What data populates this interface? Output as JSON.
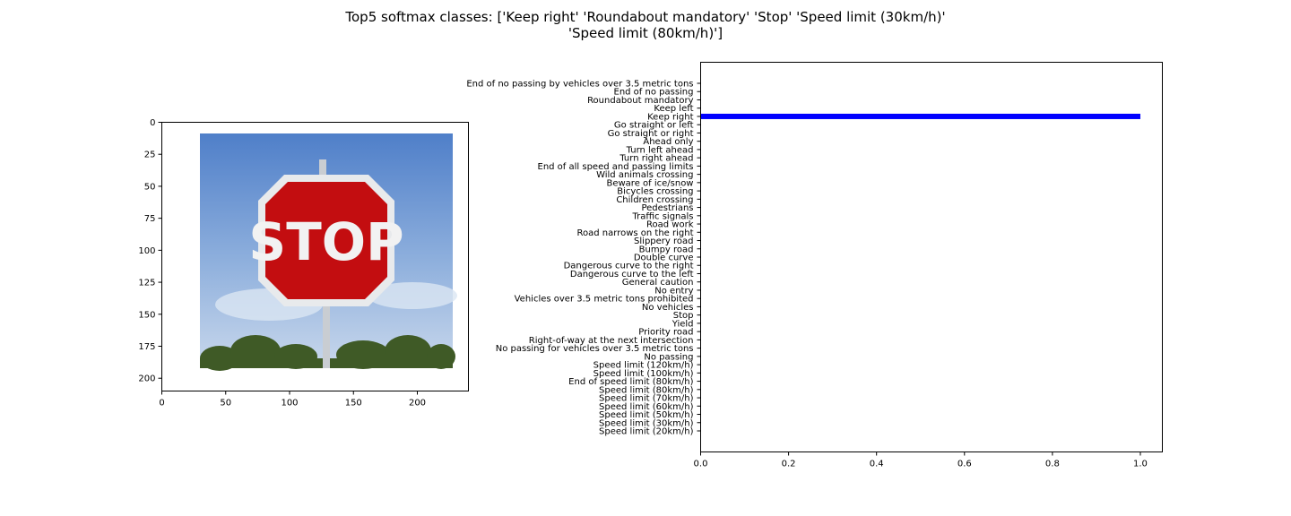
{
  "figure": {
    "title_line1": "Top5 softmax classes: ['Keep right' 'Roundabout mandatory' 'Stop' 'Speed limit (30km/h)'",
    "title_line2": "'Speed limit (80km/h)']"
  },
  "image_panel": {
    "sign_text": "STOP",
    "x_ticks": [
      0,
      50,
      100,
      150,
      200
    ],
    "y_ticks": [
      0,
      25,
      50,
      75,
      100,
      125,
      150,
      175,
      200
    ],
    "xlim": [
      0,
      240
    ],
    "ylim": [
      0,
      210
    ]
  },
  "chart_data": {
    "type": "bar",
    "orientation": "horizontal",
    "title": "",
    "xlabel": "",
    "ylabel": "",
    "xlim": [
      0,
      1.05
    ],
    "x_ticks": [
      0.0,
      0.2,
      0.4,
      0.6,
      0.8,
      1.0
    ],
    "x_tick_labels": [
      "0.0",
      "0.2",
      "0.4",
      "0.6",
      "0.8",
      "1.0"
    ],
    "grid": false,
    "bar_color": "#0000ff",
    "categories": [
      "Speed limit (20km/h)",
      "Speed limit (30km/h)",
      "Speed limit (50km/h)",
      "Speed limit (60km/h)",
      "Speed limit (70km/h)",
      "Speed limit (80km/h)",
      "End of speed limit (80km/h)",
      "Speed limit (100km/h)",
      "Speed limit (120km/h)",
      "No passing",
      "No passing for vehicles over 3.5 metric tons",
      "Right-of-way at the next intersection",
      "Priority road",
      "Yield",
      "Stop",
      "No vehicles",
      "Vehicles over 3.5 metric tons prohibited",
      "No entry",
      "General caution",
      "Dangerous curve to the left",
      "Dangerous curve to the right",
      "Double curve",
      "Bumpy road",
      "Slippery road",
      "Road narrows on the right",
      "Road work",
      "Traffic signals",
      "Pedestrians",
      "Children crossing",
      "Bicycles crossing",
      "Beware of ice/snow",
      "Wild animals crossing",
      "End of all speed and passing limits",
      "Turn right ahead",
      "Turn left ahead",
      "Ahead only",
      "Go straight or right",
      "Go straight or left",
      "Keep right",
      "Keep left",
      "Roundabout mandatory",
      "End of no passing",
      "End of no passing by vehicles over 3.5 metric tons"
    ],
    "values": [
      0,
      0,
      0,
      0,
      0,
      0,
      0,
      0,
      0,
      0,
      0,
      0,
      0,
      0,
      0,
      0,
      0,
      0,
      0,
      0,
      0,
      0,
      0,
      0,
      0,
      0,
      0,
      0,
      0,
      0,
      0,
      0,
      0,
      0,
      0,
      0,
      0,
      0,
      1.0,
      0,
      0,
      0,
      0
    ]
  }
}
